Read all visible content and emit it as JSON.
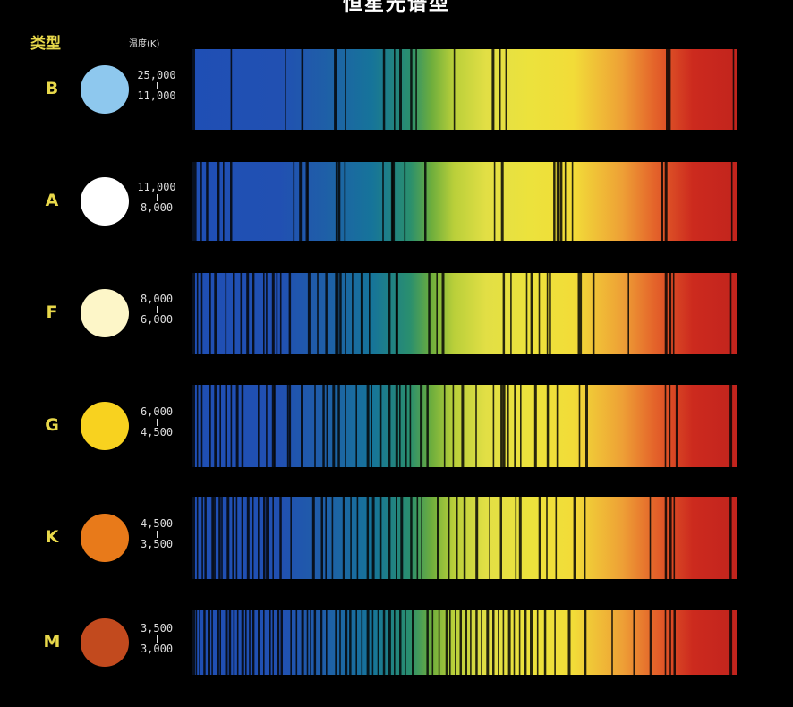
{
  "title": "恒星光谱型",
  "type_header": "类型",
  "temp_header": "温度(K)",
  "colors": {
    "label_yellow": "#e8d84a",
    "text_light": "#dddddd",
    "background": "#000000"
  },
  "rows": [
    {
      "type": "B",
      "color": "#8ec8ee",
      "temp_high": "25,000",
      "temp_low": "11,000",
      "lines": [
        0.0,
        0.07,
        0.17,
        0.2,
        0.26,
        0.28,
        0.35,
        0.37,
        0.38,
        0.4,
        0.41,
        0.48,
        0.55,
        0.564,
        0.575,
        0.87,
        0.874,
        0.993
      ]
    },
    {
      "type": "A",
      "color": "#ffffff",
      "temp_high": "11,000",
      "temp_low": "8,000",
      "lines": [
        0.0,
        0.005,
        0.015,
        0.025,
        0.045,
        0.056,
        0.069,
        0.185,
        0.196,
        0.208,
        0.211,
        0.263,
        0.267,
        0.279,
        0.349,
        0.365,
        0.367,
        0.389,
        0.426,
        0.554,
        0.567,
        0.663,
        0.669,
        0.671,
        0.675,
        0.684,
        0.697,
        0.861,
        0.868,
        0.99
      ]
    },
    {
      "type": "F",
      "color": "#fdf6c8",
      "temp_high": "8,000",
      "temp_low": "6,000",
      "lines": [
        0.0,
        0.008,
        0.016,
        0.03,
        0.04,
        0.06,
        0.074,
        0.088,
        0.099,
        0.11,
        0.13,
        0.135,
        0.146,
        0.154,
        0.161,
        0.177,
        0.212,
        0.229,
        0.244,
        0.262,
        0.264,
        0.27,
        0.28,
        0.293,
        0.309,
        0.31,
        0.324,
        0.36,
        0.373,
        0.375,
        0.433,
        0.448,
        0.458,
        0.57,
        0.584,
        0.613,
        0.621,
        0.636,
        0.651,
        0.655,
        0.708,
        0.713,
        0.735,
        0.8,
        0.868,
        0.876,
        0.883,
        0.988
      ]
    },
    {
      "type": "G",
      "color": "#f8d21f",
      "temp_high": "6,000",
      "temp_low": "4,500",
      "lines": [
        0.0,
        0.008,
        0.016,
        0.03,
        0.04,
        0.05,
        0.06,
        0.07,
        0.08,
        0.09,
        0.12,
        0.135,
        0.146,
        0.15,
        0.174,
        0.177,
        0.199,
        0.224,
        0.239,
        0.246,
        0.257,
        0.267,
        0.28,
        0.3,
        0.32,
        0.328,
        0.345,
        0.36,
        0.373,
        0.38,
        0.39,
        0.399,
        0.418,
        0.43,
        0.462,
        0.478,
        0.494,
        0.52,
        0.552,
        0.566,
        0.57,
        0.579,
        0.591,
        0.602,
        0.628,
        0.651,
        0.669,
        0.71,
        0.722,
        0.868,
        0.876,
        0.888,
        0.987
      ]
    },
    {
      "type": "K",
      "color": "#e87a1a",
      "temp_high": "4,500",
      "temp_low": "3,500",
      "lines": [
        0.0,
        0.008,
        0.017,
        0.022,
        0.035,
        0.04,
        0.048,
        0.053,
        0.063,
        0.073,
        0.08,
        0.09,
        0.1,
        0.11,
        0.12,
        0.13,
        0.135,
        0.147,
        0.16,
        0.18,
        0.22,
        0.236,
        0.244,
        0.256,
        0.276,
        0.29,
        0.302,
        0.32,
        0.33,
        0.345,
        0.36,
        0.374,
        0.382,
        0.4,
        0.412,
        0.42,
        0.449,
        0.47,
        0.485,
        0.498,
        0.52,
        0.545,
        0.565,
        0.593,
        0.6,
        0.636,
        0.65,
        0.667,
        0.7,
        0.72,
        0.84,
        0.868,
        0.876,
        0.884,
        0.987
      ]
    },
    {
      "type": "M",
      "color": "#c24a1e",
      "temp_high": "3,500",
      "temp_low": "3,000",
      "lines": [
        0.0,
        0.006,
        0.012,
        0.02,
        0.028,
        0.035,
        0.045,
        0.05,
        0.06,
        0.067,
        0.075,
        0.082,
        0.09,
        0.097,
        0.104,
        0.11,
        0.12,
        0.13,
        0.14,
        0.147,
        0.155,
        0.162,
        0.18,
        0.19,
        0.2,
        0.21,
        0.216,
        0.223,
        0.234,
        0.245,
        0.262,
        0.27,
        0.28,
        0.288,
        0.3,
        0.31,
        0.32,
        0.33,
        0.34,
        0.35,
        0.36,
        0.37,
        0.38,
        0.39,
        0.403,
        0.43,
        0.44,
        0.452,
        0.465,
        0.472,
        0.482,
        0.491,
        0.5,
        0.51,
        0.52,
        0.53,
        0.54,
        0.551,
        0.561,
        0.57,
        0.58,
        0.59,
        0.6,
        0.61,
        0.62,
        0.633,
        0.646,
        0.665,
        0.69,
        0.72,
        0.77,
        0.81,
        0.84,
        0.868,
        0.877,
        0.884,
        0.987
      ]
    }
  ]
}
